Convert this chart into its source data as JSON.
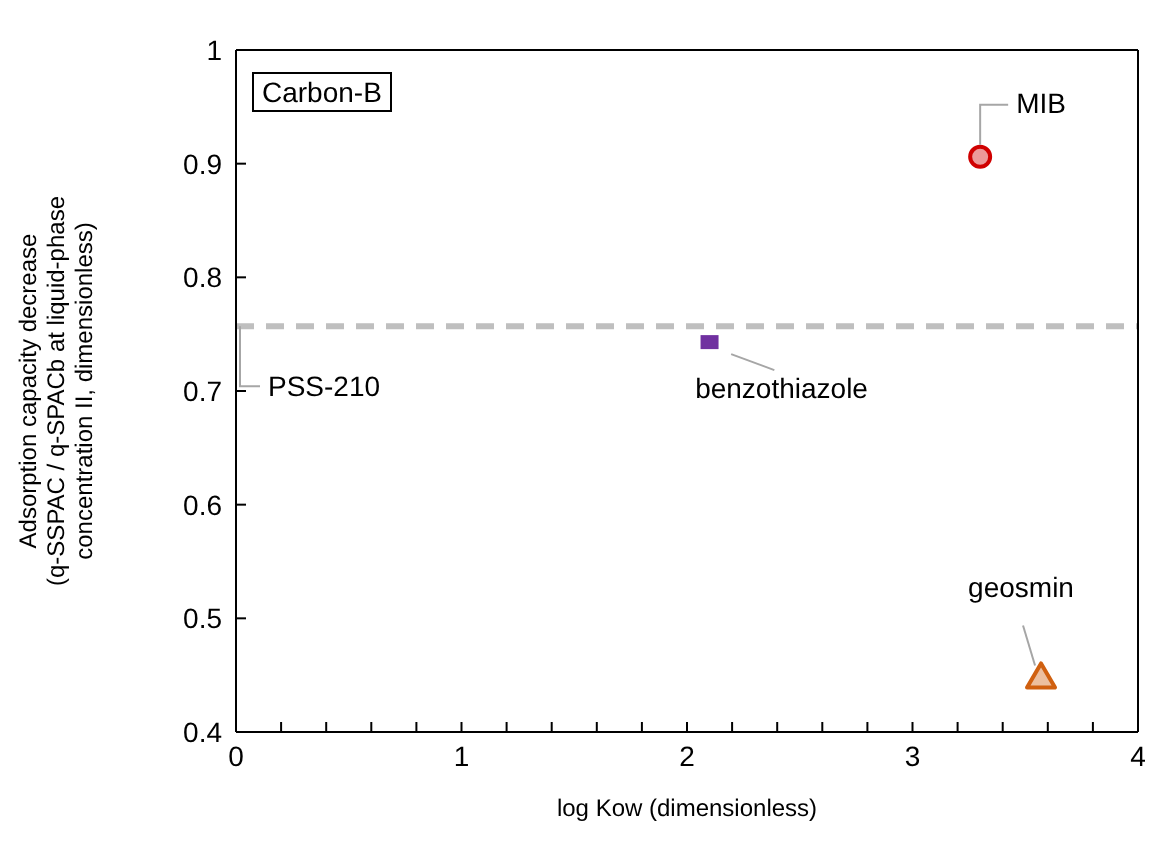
{
  "chart_data": {
    "type": "scatter",
    "xlabel": "log Kow (dimensionless)",
    "ylabel": "Adsorption capacity decrease\n(q-SSPAC / q-SPACb at liquid-phase\nconcentration II, dimensionless)",
    "annotations": [
      "Carbon-B"
    ],
    "xlim": [
      0,
      4
    ],
    "ylim": [
      0.4,
      1
    ],
    "xticks": [
      0,
      {
        "value": 0.2,
        "label": null
      },
      {
        "value": 0.4,
        "label": null
      },
      {
        "value": 0.6,
        "label": null
      },
      {
        "value": 0.8,
        "label": null
      },
      1,
      {
        "value": 1.2,
        "label": null
      },
      {
        "value": 1.4,
        "label": null
      },
      {
        "value": 1.6,
        "label": null
      },
      {
        "value": 1.8,
        "label": null
      },
      2,
      {
        "value": 2.2,
        "label": null
      },
      {
        "value": 2.4,
        "label": null
      },
      {
        "value": 2.6,
        "label": null
      },
      {
        "value": 2.8,
        "label": null
      },
      3,
      {
        "value": 3.2,
        "label": null
      },
      {
        "value": 3.4,
        "label": null
      },
      {
        "value": 3.6,
        "label": null
      },
      {
        "value": 3.8,
        "label": null
      },
      4
    ],
    "yticks": [
      0.4,
      0.5,
      0.6,
      0.7,
      0.8,
      0.9,
      1
    ],
    "grid": false,
    "ref_lines": [
      {
        "axis": "y",
        "value": 0.757,
        "label": "PSS-210",
        "color": "#bfbfbf",
        "line_style": "dashed"
      }
    ],
    "series": [
      {
        "name": "MIB",
        "color": "#d00000",
        "marker": "circle",
        "x": [
          3.3
        ],
        "values": [
          0.906
        ]
      },
      {
        "name": "benzothiazole",
        "color": "#7030a0",
        "marker": "square",
        "x": [
          2.1
        ],
        "values": [
          0.743
        ]
      },
      {
        "name": "geosmin",
        "color": "#d06010",
        "marker": "triangle",
        "x": [
          3.57
        ],
        "values": [
          0.448
        ]
      }
    ]
  }
}
